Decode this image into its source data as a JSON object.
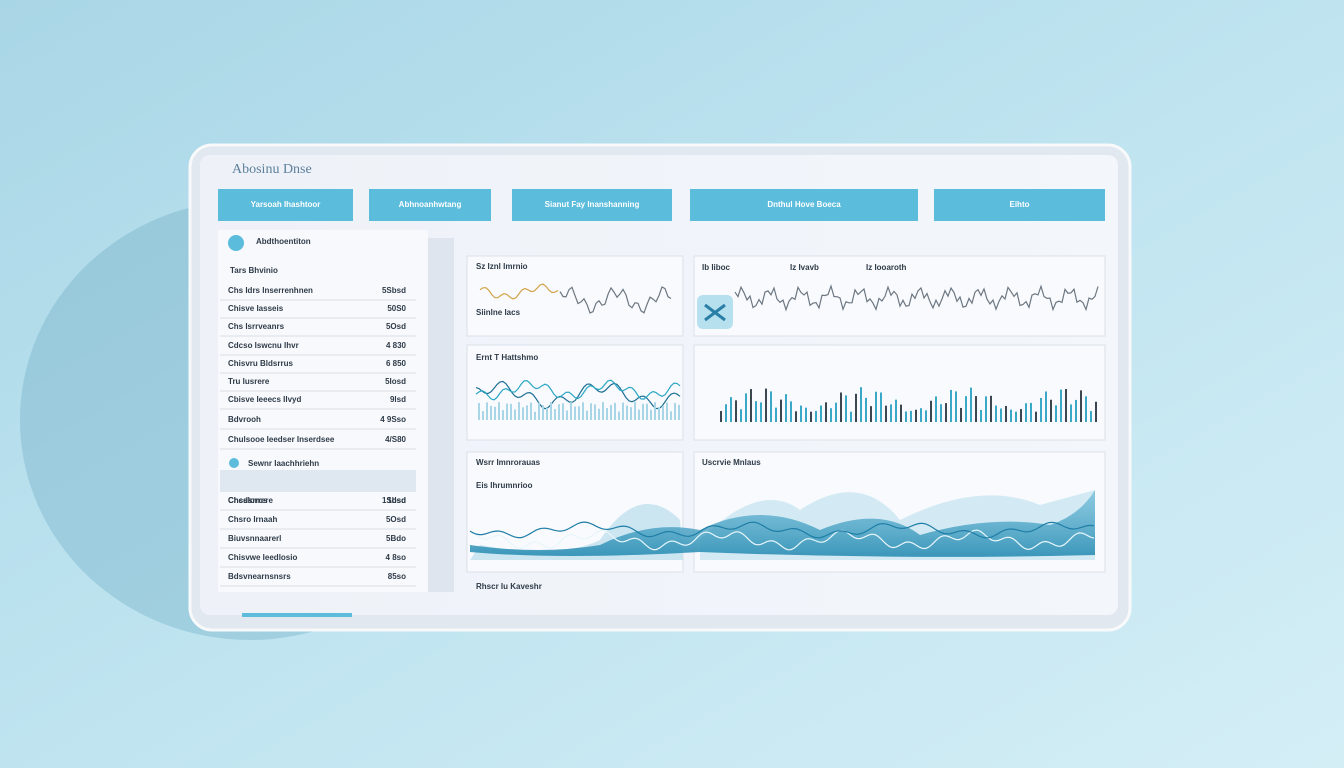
{
  "header": {
    "title": "Abosinu Dnse"
  },
  "tabs": [
    "Yarsoah Ihashtoor",
    "Abhnoanhwtang",
    "Sianut Fay Inanshanning",
    "Dnthul Hove Boeca",
    "Eihto"
  ],
  "sidebar": {
    "heading": "Abdthoentiton",
    "subheading": "Tars Bhvinio",
    "rows": [
      [
        "Chs Idrs Inserrenhnen",
        "5Sbsd"
      ],
      [
        "Chisve Iasseis",
        "50S0"
      ],
      [
        "Chs Isrrveanrs",
        "5Osd"
      ],
      [
        "Cdcso Iswcnu Ihvr",
        "4 830"
      ],
      [
        "Chisvru Bldsrrus",
        "6 850"
      ],
      [
        "Tru Iusrere",
        "5Iosd"
      ],
      [
        "Cbisve Ieeecs Ilvyd",
        "9lsd"
      ],
      [
        "Bdvrooh",
        "4 9Sso"
      ],
      [
        "Chulsooe Ieedser Inserdsee",
        "4/S80"
      ],
      [
        "Chsslorrere",
        "1bsd"
      ],
      [
        "Chcdsrrcs",
        "1Sdsd"
      ],
      [
        "Chsro Irnaah",
        "5Osd"
      ],
      [
        "Biuvsnnaarerl",
        "5Bdo"
      ],
      [
        "Chisvwe Ieedlosio",
        "4 8so"
      ],
      [
        "Bdsvnearnsnsrs",
        "85so"
      ]
    ],
    "highlight": "Sewnr Iaachhriehn"
  },
  "panels": {
    "top_left": "Sz Iznl Imrnio",
    "top_left_sub": "Siinlne Iacs",
    "top_right_a": "Ib Iiboc",
    "top_right_b": "Iz Ivavb",
    "top_right_c": "Iz Iooaroth",
    "mid_left": "Ernt T Hattshmo",
    "bottom_left": "Wsrr Imnrorauas",
    "bottom_left_sub": "Eis Ihrumnrioo",
    "bottom_right": "Uscrvie Mnlaus",
    "bottom_strip": "Rhscr Iu Kaveshr"
  }
}
